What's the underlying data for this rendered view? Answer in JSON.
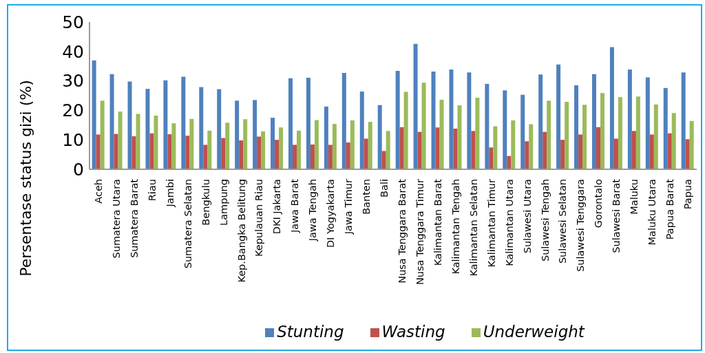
{
  "chart_data": {
    "type": "bar",
    "ylabel": "Persentase status gizi (%)",
    "categories": [
      "Aceh",
      "Sumatera Utara",
      "Sumatera Barat",
      "Riau",
      "Jambi",
      "Sumatera Selatan",
      "Bengkulu",
      "Lampung",
      "Kep.Bangka Belitung",
      "Kepulauan Riau",
      "DKI Jakarta",
      "Jawa Barat",
      "Jawa Tengah",
      "DI Yogyakarta",
      "Jawa Timur",
      "Banten",
      "Bali",
      "Nusa Tenggara Barat",
      "Nusa Tenggara Timur",
      "Kalimantan Barat",
      "Kalimantan Tengah",
      "Kalimantan Selatan",
      "Kalimantan Timur",
      "Kalimantan Utara",
      "Sulawesi Utara",
      "Sulawesi Tengah",
      "Sulawesi Selatan",
      "Sulawesi Tenggara",
      "Gorontalo",
      "Sulawesi Barat",
      "Maluku",
      "Maluku Utara",
      "Papua Barat",
      "Papua"
    ],
    "series": [
      {
        "name": "Stunting",
        "color": "#4f81bd",
        "values": [
          37.0,
          32.3,
          29.8,
          27.3,
          30.2,
          31.4,
          27.9,
          27.2,
          23.3,
          23.5,
          17.5,
          30.9,
          31.1,
          21.3,
          32.7,
          26.4,
          21.8,
          33.4,
          42.6,
          33.2,
          33.9,
          32.9,
          29.0,
          26.8,
          25.3,
          32.2,
          35.6,
          28.5,
          32.3,
          41.5,
          33.9,
          31.2,
          27.6,
          32.9
        ]
      },
      {
        "name": "Wasting",
        "color": "#c0504d",
        "values": [
          11.8,
          12.0,
          11.2,
          12.2,
          11.9,
          11.4,
          8.3,
          10.6,
          9.8,
          11.1,
          10.0,
          8.3,
          8.4,
          8.3,
          9.1,
          10.4,
          6.2,
          14.3,
          12.7,
          14.2,
          13.8,
          13.0,
          7.4,
          4.5,
          9.5,
          12.7,
          10.0,
          11.8,
          14.3,
          10.4,
          13.0,
          11.8,
          12.2,
          10.2
        ]
      },
      {
        "name": "Underweight",
        "color": "#9bbb59",
        "values": [
          23.3,
          19.6,
          18.8,
          18.2,
          15.6,
          17.1,
          13.1,
          15.8,
          17.0,
          12.9,
          14.2,
          13.1,
          16.7,
          15.4,
          16.6,
          16.1,
          13.0,
          26.3,
          29.4,
          23.6,
          21.7,
          24.3,
          14.6,
          16.6,
          15.3,
          23.3,
          22.9,
          21.9,
          25.9,
          24.5,
          24.7,
          22.0,
          19.1,
          16.4
        ]
      }
    ],
    "ylim": [
      0,
      50
    ],
    "yticks": [
      0,
      10,
      20,
      30,
      40,
      50
    ],
    "legend": "bottom"
  }
}
